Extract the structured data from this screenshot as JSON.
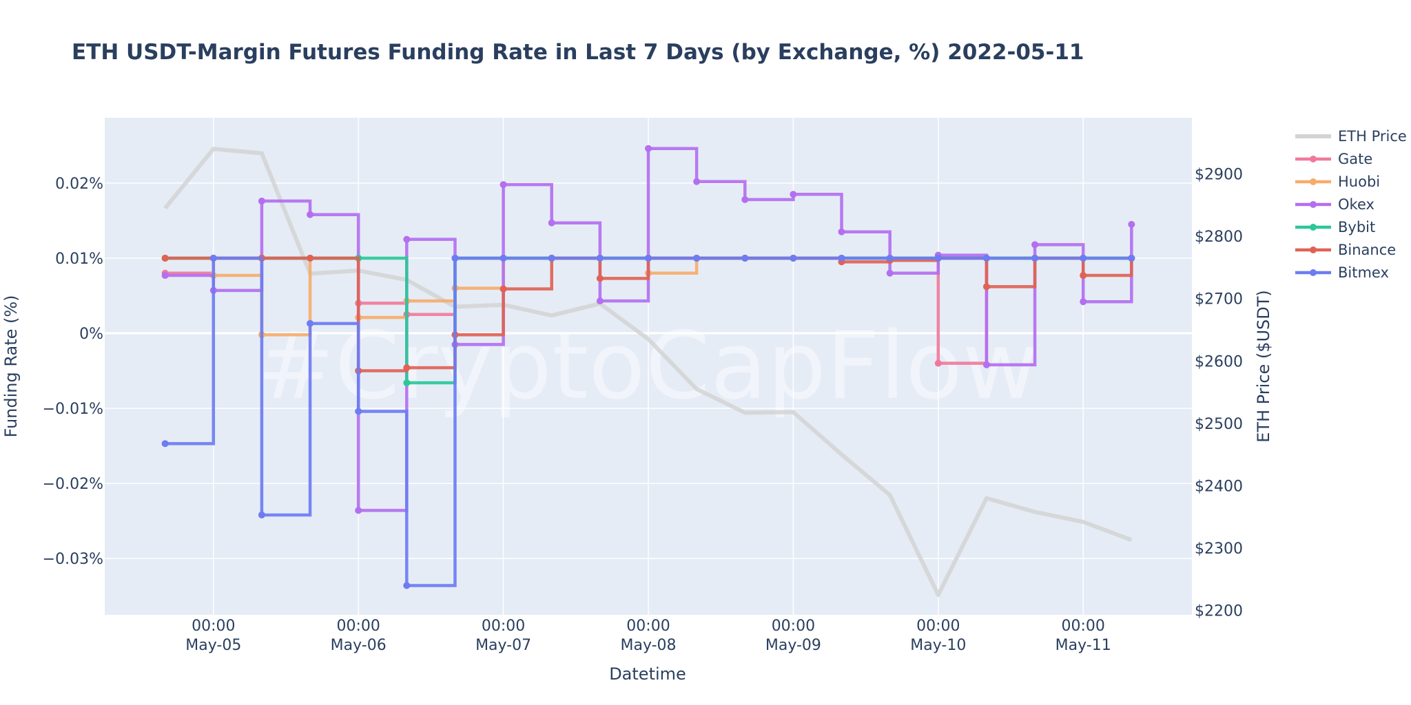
{
  "chart_data": {
    "type": "line",
    "title": "ETH USDT-Margin Futures Funding Rate in Last 7 Days (by Exchange, %) 2022-05-11",
    "watermark": "#CryptoCapFlow",
    "xlabel": "Datetime",
    "ylabel": "Funding Rate (%)",
    "y2label": "ETH Price ($USDT)",
    "x_ticks": [
      {
        "x": 0,
        "line1": "00:00",
        "line2": "May-05"
      },
      {
        "x": 24,
        "line1": "00:00",
        "line2": "May-06"
      },
      {
        "x": 48,
        "line1": "00:00",
        "line2": "May-07"
      },
      {
        "x": 72,
        "line1": "00:00",
        "line2": "May-08"
      },
      {
        "x": 96,
        "line1": "00:00",
        "line2": "May-09"
      },
      {
        "x": 120,
        "line1": "00:00",
        "line2": "May-10"
      },
      {
        "x": 144,
        "line1": "00:00",
        "line2": "May-11"
      }
    ],
    "xlim": [
      -18,
      162
    ],
    "ylim": [
      -0.0375,
      0.0287
    ],
    "y_ticks": [
      {
        "value": 0.02,
        "label": "0.02%"
      },
      {
        "value": 0.01,
        "label": "0.01%"
      },
      {
        "value": 0,
        "label": "0%"
      },
      {
        "value": -0.01,
        "label": "−0.01%"
      },
      {
        "value": -0.02,
        "label": "−0.02%"
      },
      {
        "value": -0.03,
        "label": "−0.03%"
      }
    ],
    "y2lim": [
      2193,
      2990
    ],
    "y2_ticks": [
      {
        "value": 2900,
        "label": "$2900"
      },
      {
        "value": 2800,
        "label": "$2800"
      },
      {
        "value": 2700,
        "label": "$2700"
      },
      {
        "value": 2600,
        "label": "$2600"
      },
      {
        "value": 2500,
        "label": "$2500"
      },
      {
        "value": 2400,
        "label": "$2400"
      },
      {
        "value": 2300,
        "label": "$2300"
      },
      {
        "value": 2200,
        "label": "$2200"
      }
    ],
    "x": [
      -8,
      0,
      8,
      16,
      24,
      32,
      40,
      48,
      56,
      64,
      72,
      80,
      88,
      96,
      104,
      112,
      120,
      128,
      136,
      144,
      152
    ],
    "price": {
      "name": "ETH Price",
      "color": "#d3d3d3",
      "values": [
        2845,
        2940,
        2933,
        2740,
        2745,
        2730,
        2687,
        2690,
        2673,
        2692,
        2635,
        2555,
        2517,
        2518,
        2450,
        2385,
        2225,
        2380,
        2358,
        2342,
        2313
      ]
    },
    "series": [
      {
        "name": "Gate",
        "color": "#f0799b",
        "values": [
          0.008,
          0.01,
          0.01,
          0.01,
          0.004,
          0.0025,
          0.01,
          0.01,
          0.01,
          0.01,
          0.01,
          0.01,
          0.01,
          0.01,
          0.01,
          0.01,
          -0.004,
          0.01,
          0.01,
          0.01,
          0.01
        ]
      },
      {
        "name": "Huobi",
        "color": "#f6ad6b",
        "values": [
          0.01,
          0.0077,
          -0.0002,
          0.01,
          0.0021,
          0.0043,
          0.006,
          0.01,
          0.01,
          0.01,
          0.008,
          0.01,
          0.01,
          0.01,
          0.01,
          0.01,
          0.01,
          0.01,
          0.01,
          0.01,
          0.01
        ]
      },
      {
        "name": "Okex",
        "color": "#b36ff0",
        "values": [
          0.0077,
          0.0057,
          0.0176,
          0.0158,
          -0.0236,
          0.0125,
          -0.0015,
          0.0198,
          0.0147,
          0.0043,
          0.0246,
          0.0202,
          0.0178,
          0.0185,
          0.0135,
          0.008,
          0.0104,
          -0.0042,
          0.0118,
          0.0042,
          0.0145
        ]
      },
      {
        "name": "Bybit",
        "color": "#2bc797",
        "values": [
          0.01,
          0.01,
          0.01,
          0.01,
          0.01,
          -0.0066,
          0.01,
          0.01,
          0.01,
          0.01,
          0.01,
          0.01,
          0.01,
          0.01,
          0.01,
          0.01,
          0.01,
          0.01,
          0.01,
          0.01,
          0.01
        ]
      },
      {
        "name": "Binance",
        "color": "#e06254",
        "values": [
          0.01,
          0.01,
          0.01,
          0.01,
          -0.005,
          -0.0046,
          -0.0002,
          0.0059,
          0.01,
          0.0073,
          0.01,
          0.01,
          0.01,
          0.01,
          0.0095,
          0.0097,
          0.01,
          0.0062,
          0.01,
          0.0077,
          0.01
        ]
      },
      {
        "name": "Bitmex",
        "color": "#6d7cf2",
        "values": [
          -0.0147,
          0.01,
          -0.0242,
          0.0013,
          -0.0104,
          -0.0336,
          0.01,
          0.01,
          0.01,
          0.01,
          0.01,
          0.01,
          0.01,
          0.01,
          0.01,
          0.01,
          0.01,
          0.01,
          0.01,
          0.01,
          0.01
        ]
      }
    ],
    "legend_position": "right",
    "grid": true,
    "plot_background": "#e5ecf6"
  }
}
